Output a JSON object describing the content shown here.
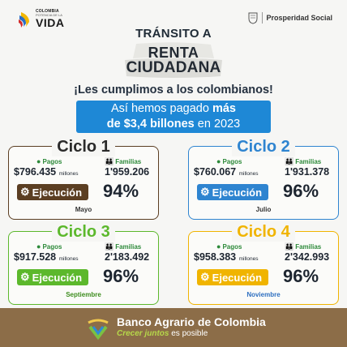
{
  "header": {
    "logo_small": "COLOMBIA",
    "logo_tiny": "POTENCIA DE LA",
    "logo_vida": "VIDA",
    "right_logo": "Prosperidad Social"
  },
  "title": {
    "line1": "TRÁNSITO A",
    "renta1": "RENTA",
    "renta2": "CIUDADANA",
    "subtitle": "¡Les cumplimos a los colombianos!",
    "banner_1a": "Así hemos pagado ",
    "banner_1b": "más",
    "banner_2a": "de $3,4 billones",
    "banner_2b": " en 2023"
  },
  "labels": {
    "pagos": "Pagos",
    "familias": "Familias",
    "millones": "millones",
    "ejecucion": "Ejecución"
  },
  "cards": [
    {
      "title": "Ciclo 1",
      "pagos": "$796.435",
      "familias": "1'959.206",
      "pct": "94%",
      "mes": "Mayo",
      "color": "#5b3e22"
    },
    {
      "title": "Ciclo 2",
      "pagos": "$760.067",
      "familias": "1'931.378",
      "pct": "96%",
      "mes": "Julio",
      "color": "#2e84d0"
    },
    {
      "title": "Ciclo 3",
      "pagos": "$917.528",
      "familias": "2'183.492",
      "pct": "96%",
      "mes": "Septiembre",
      "color": "#5cb82c"
    },
    {
      "title": "Ciclo 4",
      "pagos": "$958.383",
      "familias": "2'342.993",
      "pct": "96%",
      "mes": "Noviembre",
      "color": "#f0b400"
    }
  ],
  "colors": {
    "pagos_label": "#2d8a3a",
    "familias_label": "#2d8a3a",
    "footer_bg": "#8c6d48",
    "slogan_accent": "#b6d84a"
  },
  "footer": {
    "name": "Banco Agrario de Colombia",
    "slogan_a": "Crecer juntos",
    "slogan_b": " es posible"
  }
}
